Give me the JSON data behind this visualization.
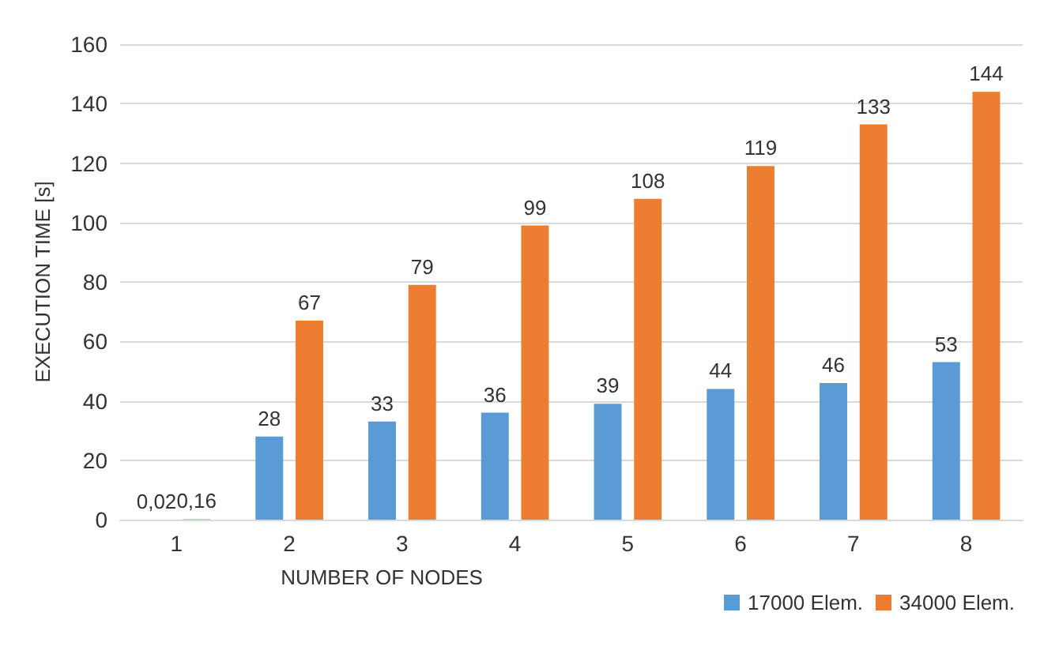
{
  "chart_data": {
    "type": "bar",
    "xlabel": "NUMBER OF NODES",
    "ylabel": "EXECUTION TIME [s]",
    "categories": [
      "1",
      "2",
      "3",
      "4",
      "5",
      "6",
      "7",
      "8"
    ],
    "series": [
      {
        "name": "17000 Elem.",
        "color": "#5b9bd5",
        "values": [
          0.02,
          28,
          33,
          36,
          39,
          44,
          46,
          53
        ],
        "value_labels": [
          "0,02",
          "28",
          "33",
          "36",
          "39",
          "44",
          "46",
          "53"
        ]
      },
      {
        "name": "34000 Elem.",
        "color": "#ed7d31",
        "values": [
          0.16,
          67,
          79,
          99,
          108,
          119,
          133,
          144
        ],
        "value_labels": [
          "0,16",
          "67",
          "79",
          "99",
          "108",
          "119",
          "133",
          "144"
        ]
      }
    ],
    "ylim": [
      0,
      160
    ],
    "yticks": [
      0,
      20,
      40,
      60,
      80,
      100,
      120,
      140,
      160
    ],
    "grid": "y",
    "legend": "bottom right"
  }
}
